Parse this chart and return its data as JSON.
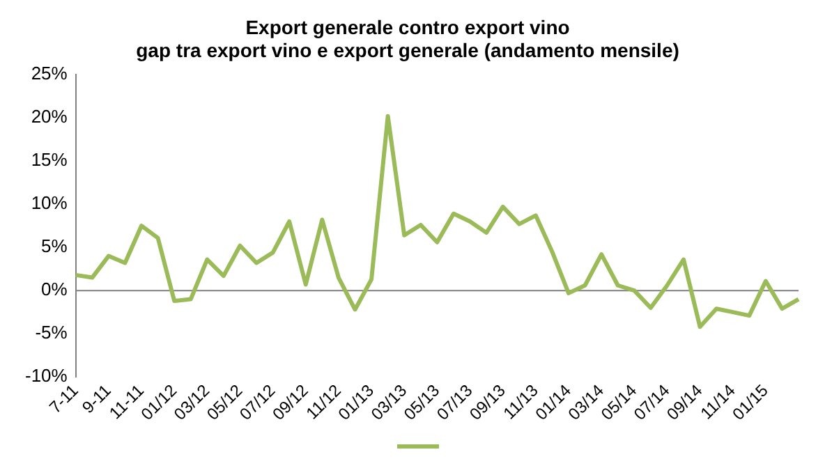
{
  "chart_data": {
    "type": "line",
    "title": "Export generale contro export vino\ngap tra export vino e export generale (andamento mensile)",
    "categories": [
      "7-11",
      null,
      "9-11",
      null,
      "11-11",
      null,
      "01/12",
      null,
      "03/12",
      null,
      "05/12",
      null,
      "07/12",
      null,
      "09/12",
      null,
      "11/12",
      null,
      "01/13",
      null,
      "03/13",
      null,
      "05/13",
      null,
      "07/13",
      null,
      "09/13",
      null,
      "11/13",
      null,
      "01/14",
      null,
      "03/14",
      null,
      "05/14",
      null,
      "07/14",
      null,
      "09/14",
      null,
      "11/14",
      null,
      "01/15",
      null,
      null
    ],
    "series": [
      {
        "color": "#9bbb59",
        "values": [
          1.8,
          1.5,
          4.0,
          3.2,
          7.5,
          6.1,
          -1.2,
          -1.0,
          3.6,
          1.7,
          5.2,
          3.2,
          4.4,
          8.0,
          0.7,
          8.2,
          1.5,
          -2.2,
          1.3,
          20.2,
          6.4,
          7.6,
          5.6,
          8.9,
          8.0,
          6.7,
          9.7,
          7.7,
          8.7,
          4.5,
          -0.3,
          0.6,
          4.2,
          0.6,
          0.0,
          -2.0,
          0.6,
          3.6,
          -4.2,
          -2.1,
          -2.5,
          -2.9,
          1.1,
          -2.1,
          -1.0
        ]
      }
    ],
    "ylim": [
      -10,
      25
    ],
    "yticks": [
      {
        "value": -10,
        "label": "-10%"
      },
      {
        "value": -5,
        "label": "-5%"
      },
      {
        "value": 0,
        "label": "0%"
      },
      {
        "value": 5,
        "label": "5%"
      },
      {
        "value": 10,
        "label": "10%"
      },
      {
        "value": 15,
        "label": "15%"
      },
      {
        "value": 20,
        "label": "20%"
      },
      {
        "value": 25,
        "label": "25%"
      }
    ],
    "ref_lines": [
      {
        "axis": "y",
        "value": 0,
        "color": "#808080"
      }
    ],
    "grid": false,
    "marker": "none",
    "line_style": "solid"
  }
}
